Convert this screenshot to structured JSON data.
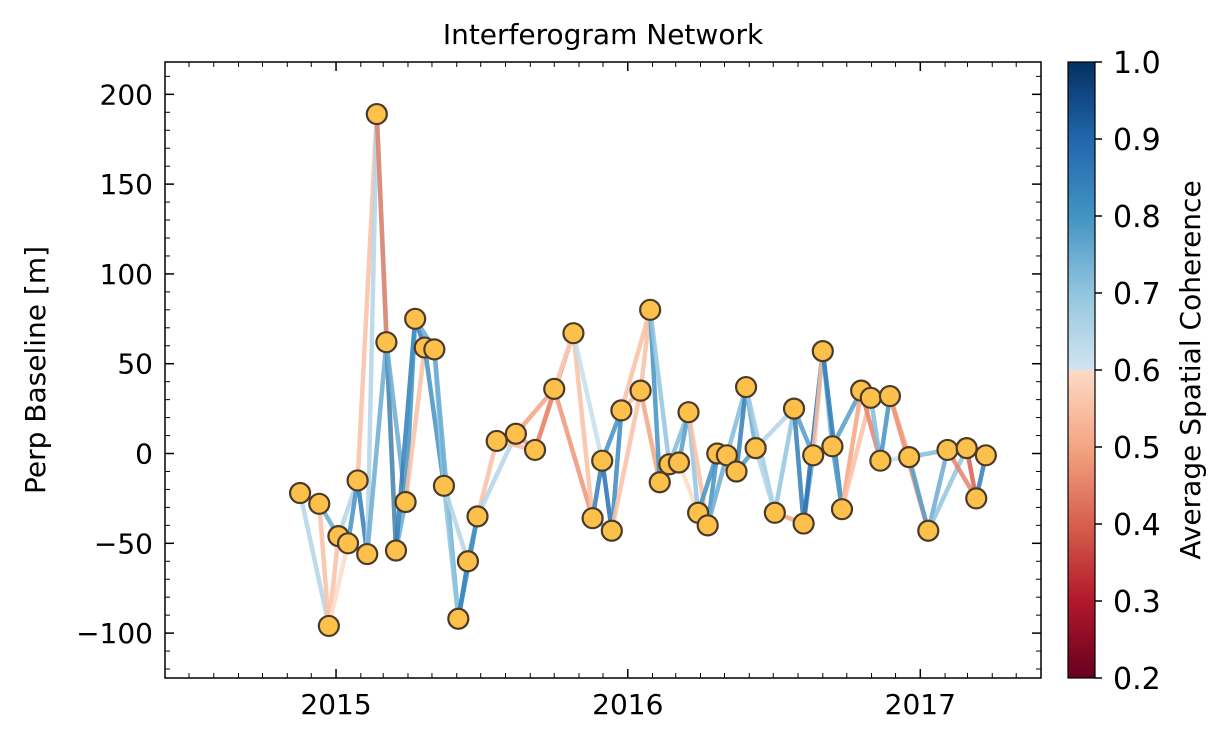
{
  "chart_data": {
    "type": "scatter",
    "title": "Interferogram Network",
    "xlabel": "",
    "ylabel": "Perp Baseline [m]",
    "x_unit": "date",
    "xlim": [
      "2014-06-01",
      "2017-06-01"
    ],
    "ylim": [
      -125,
      218
    ],
    "x_ticks": [
      {
        "date": "2015-01-01",
        "label": "2015"
      },
      {
        "date": "2016-01-01",
        "label": "2016"
      },
      {
        "date": "2017-01-01",
        "label": "2017"
      }
    ],
    "y_ticks": [
      {
        "value": 200,
        "label": "200"
      },
      {
        "value": 150,
        "label": "150"
      },
      {
        "value": 100,
        "label": "100"
      },
      {
        "value": 50,
        "label": "50"
      },
      {
        "value": 0,
        "label": "0"
      },
      {
        "value": -50,
        "label": "−50"
      },
      {
        "value": -100,
        "label": "−100"
      }
    ],
    "marker_color": "#fcc04b",
    "marker_edge_color": "#4a3a2a",
    "acquisitions": [
      {
        "date": "2014-11-17",
        "bperp": -22
      },
      {
        "date": "2014-12-11",
        "bperp": -28
      },
      {
        "date": "2014-12-23",
        "bperp": -96
      },
      {
        "date": "2015-01-04",
        "bperp": -46
      },
      {
        "date": "2015-01-16",
        "bperp": -50
      },
      {
        "date": "2015-01-28",
        "bperp": -15
      },
      {
        "date": "2015-02-09",
        "bperp": -56
      },
      {
        "date": "2015-02-21",
        "bperp": 189
      },
      {
        "date": "2015-03-05",
        "bperp": 62
      },
      {
        "date": "2015-03-17",
        "bperp": -54
      },
      {
        "date": "2015-03-29",
        "bperp": -27
      },
      {
        "date": "2015-04-10",
        "bperp": 75
      },
      {
        "date": "2015-04-22",
        "bperp": 59
      },
      {
        "date": "2015-05-04",
        "bperp": 58
      },
      {
        "date": "2015-05-16",
        "bperp": -18
      },
      {
        "date": "2015-06-03",
        "bperp": -92
      },
      {
        "date": "2015-06-15",
        "bperp": -60
      },
      {
        "date": "2015-06-27",
        "bperp": -35
      },
      {
        "date": "2015-07-21",
        "bperp": 7
      },
      {
        "date": "2015-08-14",
        "bperp": 11
      },
      {
        "date": "2015-09-07",
        "bperp": 2
      },
      {
        "date": "2015-10-01",
        "bperp": 36
      },
      {
        "date": "2015-10-25",
        "bperp": 67
      },
      {
        "date": "2015-11-18",
        "bperp": -36
      },
      {
        "date": "2015-11-30",
        "bperp": -4
      },
      {
        "date": "2015-12-12",
        "bperp": -43
      },
      {
        "date": "2015-12-24",
        "bperp": 24
      },
      {
        "date": "2016-01-17",
        "bperp": 35
      },
      {
        "date": "2016-01-29",
        "bperp": 80
      },
      {
        "date": "2016-02-10",
        "bperp": -16
      },
      {
        "date": "2016-02-22",
        "bperp": -6
      },
      {
        "date": "2016-03-05",
        "bperp": -5
      },
      {
        "date": "2016-03-17",
        "bperp": 23
      },
      {
        "date": "2016-03-29",
        "bperp": -33
      },
      {
        "date": "2016-04-10",
        "bperp": -40
      },
      {
        "date": "2016-04-22",
        "bperp": 0
      },
      {
        "date": "2016-05-04",
        "bperp": -1
      },
      {
        "date": "2016-05-16",
        "bperp": -10
      },
      {
        "date": "2016-05-28",
        "bperp": 37
      },
      {
        "date": "2016-06-09",
        "bperp": 3
      },
      {
        "date": "2016-07-03",
        "bperp": -33
      },
      {
        "date": "2016-07-27",
        "bperp": 25
      },
      {
        "date": "2016-08-08",
        "bperp": -39
      },
      {
        "date": "2016-08-20",
        "bperp": -1
      },
      {
        "date": "2016-09-01",
        "bperp": 57
      },
      {
        "date": "2016-09-13",
        "bperp": 4
      },
      {
        "date": "2016-09-25",
        "bperp": -31
      },
      {
        "date": "2016-10-19",
        "bperp": 35
      },
      {
        "date": "2016-10-31",
        "bperp": 31
      },
      {
        "date": "2016-11-12",
        "bperp": -4
      },
      {
        "date": "2016-11-24",
        "bperp": 32
      },
      {
        "date": "2016-12-18",
        "bperp": -2
      },
      {
        "date": "2017-01-11",
        "bperp": -43
      },
      {
        "date": "2017-02-04",
        "bperp": 2
      },
      {
        "date": "2017-02-28",
        "bperp": 3
      },
      {
        "date": "2017-03-12",
        "bperp": -25
      },
      {
        "date": "2017-03-24",
        "bperp": -1
      }
    ],
    "interferograms": [
      [
        0,
        1,
        0.62
      ],
      [
        0,
        2,
        0.65
      ],
      [
        1,
        2,
        0.55
      ],
      [
        1,
        3,
        0.75
      ],
      [
        2,
        3,
        0.55
      ],
      [
        2,
        4,
        0.6
      ],
      [
        3,
        4,
        0.7
      ],
      [
        3,
        5,
        0.65
      ],
      [
        4,
        5,
        0.8
      ],
      [
        4,
        6,
        0.7
      ],
      [
        5,
        6,
        0.85
      ],
      [
        5,
        7,
        0.55
      ],
      [
        6,
        7,
        0.65
      ],
      [
        6,
        8,
        0.75
      ],
      [
        7,
        8,
        0.7
      ],
      [
        7,
        9,
        0.45
      ],
      [
        8,
        9,
        0.8
      ],
      [
        8,
        10,
        0.75
      ],
      [
        9,
        10,
        0.75
      ],
      [
        9,
        11,
        0.85
      ],
      [
        10,
        11,
        0.8
      ],
      [
        10,
        12,
        0.55
      ],
      [
        11,
        12,
        0.85
      ],
      [
        11,
        13,
        0.75
      ],
      [
        12,
        13,
        0.8
      ],
      [
        12,
        14,
        0.8
      ],
      [
        13,
        14,
        0.7
      ],
      [
        13,
        15,
        0.75
      ],
      [
        14,
        15,
        0.7
      ],
      [
        14,
        16,
        0.65
      ],
      [
        15,
        16,
        0.85
      ],
      [
        15,
        17,
        0.82
      ],
      [
        16,
        17,
        0.8
      ],
      [
        17,
        18,
        0.55
      ],
      [
        17,
        19,
        0.65
      ],
      [
        18,
        19,
        0.6
      ],
      [
        18,
        20,
        0.55
      ],
      [
        19,
        20,
        0.5
      ],
      [
        19,
        21,
        0.5
      ],
      [
        20,
        21,
        0.55
      ],
      [
        20,
        22,
        0.45
      ],
      [
        21,
        22,
        0.58
      ],
      [
        21,
        23,
        0.48
      ],
      [
        22,
        23,
        0.55
      ],
      [
        22,
        24,
        0.62
      ],
      [
        23,
        24,
        0.85
      ],
      [
        23,
        25,
        0.78
      ],
      [
        24,
        25,
        0.88
      ],
      [
        24,
        26,
        0.8
      ],
      [
        25,
        26,
        0.82
      ],
      [
        25,
        27,
        0.55
      ],
      [
        26,
        27,
        0.55
      ],
      [
        26,
        28,
        0.55
      ],
      [
        27,
        28,
        0.55
      ],
      [
        27,
        29,
        0.5
      ],
      [
        28,
        29,
        0.8
      ],
      [
        28,
        30,
        0.7
      ],
      [
        29,
        30,
        0.75
      ],
      [
        29,
        31,
        0.75
      ],
      [
        30,
        31,
        0.55
      ],
      [
        30,
        32,
        0.72
      ],
      [
        31,
        32,
        0.78
      ],
      [
        31,
        33,
        0.6
      ],
      [
        32,
        33,
        0.7
      ],
      [
        32,
        34,
        0.55
      ],
      [
        33,
        34,
        0.78
      ],
      [
        33,
        35,
        0.8
      ],
      [
        34,
        35,
        0.8
      ],
      [
        34,
        36,
        0.75
      ],
      [
        35,
        36,
        0.6
      ],
      [
        35,
        37,
        0.62
      ],
      [
        36,
        37,
        0.6
      ],
      [
        36,
        38,
        0.72
      ],
      [
        37,
        38,
        0.85
      ],
      [
        37,
        39,
        0.78
      ],
      [
        38,
        39,
        0.75
      ],
      [
        38,
        40,
        0.68
      ],
      [
        39,
        40,
        0.65
      ],
      [
        39,
        41,
        0.65
      ],
      [
        40,
        41,
        0.7
      ],
      [
        40,
        42,
        0.5
      ],
      [
        41,
        42,
        0.85
      ],
      [
        41,
        43,
        0.78
      ],
      [
        42,
        43,
        0.75
      ],
      [
        42,
        44,
        0.88
      ],
      [
        43,
        44,
        0.55
      ],
      [
        43,
        45,
        0.5
      ],
      [
        44,
        45,
        0.75
      ],
      [
        44,
        46,
        0.85
      ],
      [
        45,
        46,
        0.78
      ],
      [
        45,
        47,
        0.78
      ],
      [
        46,
        47,
        0.5
      ],
      [
        46,
        48,
        0.55
      ],
      [
        47,
        48,
        0.8
      ],
      [
        47,
        49,
        0.45
      ],
      [
        48,
        49,
        0.72
      ],
      [
        48,
        50,
        0.88
      ],
      [
        49,
        50,
        0.8
      ],
      [
        49,
        51,
        0.62
      ],
      [
        50,
        51,
        0.5
      ],
      [
        50,
        52,
        0.48
      ],
      [
        51,
        52,
        0.78
      ],
      [
        51,
        53,
        0.72
      ],
      [
        52,
        53,
        0.75
      ],
      [
        52,
        54,
        0.7
      ],
      [
        53,
        54,
        0.75
      ],
      [
        53,
        55,
        0.45
      ],
      [
        54,
        55,
        0.4
      ],
      [
        54,
        56,
        0.55
      ],
      [
        55,
        56,
        0.85
      ]
    ],
    "colorbar": {
      "label": "Average Spatial Coherence",
      "range": [
        0.2,
        1.0
      ],
      "ticks": [
        {
          "value": 1.0,
          "label": "1.0"
        },
        {
          "value": 0.9,
          "label": "0.9"
        },
        {
          "value": 0.8,
          "label": "0.8"
        },
        {
          "value": 0.7,
          "label": "0.7"
        },
        {
          "value": 0.6,
          "label": "0.6"
        },
        {
          "value": 0.5,
          "label": "0.5"
        },
        {
          "value": 0.4,
          "label": "0.4"
        },
        {
          "value": 0.3,
          "label": "0.3"
        },
        {
          "value": 0.2,
          "label": "0.2"
        }
      ],
      "colormap": "RdBu"
    }
  }
}
